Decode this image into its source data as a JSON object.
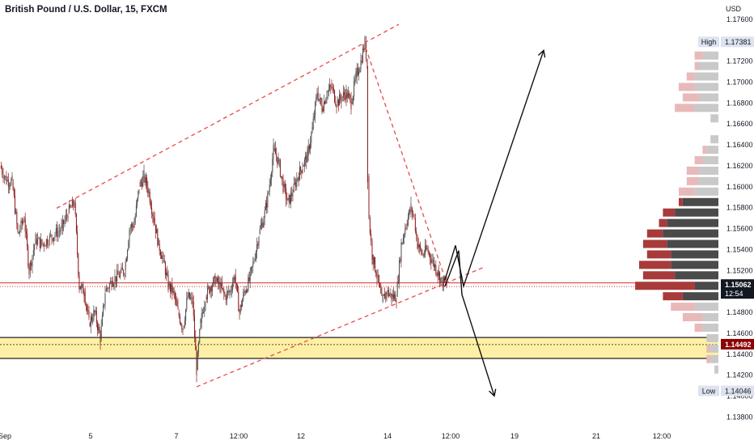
{
  "header": {
    "title": "British Pound / U.S. Dollar, 15, FXCM"
  },
  "axis": {
    "currency": "USD"
  },
  "chart_data": {
    "type": "candlestick",
    "title": "British Pound / U.S. Dollar, 15, FXCM",
    "ylabel": "USD",
    "ylim": [
      1.137,
      1.1775
    ],
    "y_ticks": [
      "1.13800",
      "1.14000",
      "1.14200",
      "1.14400",
      "1.14600",
      "1.14800",
      "1.15000",
      "1.15200",
      "1.15400",
      "1.15600",
      "1.15800",
      "1.16000",
      "1.16200",
      "1.16400",
      "1.16600",
      "1.16800",
      "1.17000",
      "1.17200",
      "1.17400",
      "1.17600"
    ],
    "x_ticks": [
      "Sep",
      "5",
      "7",
      "12:00",
      "12",
      "14",
      "12:00",
      "19",
      "21",
      "12:00"
    ],
    "last_price": {
      "value": 1.15062,
      "label": "1.15062",
      "countdown": "12:54"
    },
    "level": {
      "value": 1.14492,
      "label": "1.14492"
    },
    "high": {
      "label": "High",
      "value": "1.17381"
    },
    "low": {
      "label": "Low",
      "value": "1.14046"
    },
    "support_zone": [
      1.1436,
      1.1456
    ],
    "price_path": [
      [
        0,
        1.162
      ],
      [
        8,
        1.1606
      ],
      [
        15,
        1.1605
      ],
      [
        22,
        1.1555
      ],
      [
        30,
        1.157
      ],
      [
        36,
        1.152
      ],
      [
        44,
        1.155
      ],
      [
        52,
        1.1545
      ],
      [
        60,
        1.155
      ],
      [
        68,
        1.1555
      ],
      [
        76,
        1.156
      ],
      [
        84,
        1.1575
      ],
      [
        92,
        1.1585
      ],
      [
        98,
        1.1505
      ],
      [
        104,
        1.15
      ],
      [
        110,
        1.147
      ],
      [
        117,
        1.148
      ],
      [
        124,
        1.1455
      ],
      [
        130,
        1.15
      ],
      [
        138,
        1.151
      ],
      [
        146,
        1.1515
      ],
      [
        154,
        1.152
      ],
      [
        160,
        1.156
      ],
      [
        166,
        1.1565
      ],
      [
        172,
        1.16
      ],
      [
        178,
        1.161
      ],
      [
        184,
        1.1595
      ],
      [
        190,
        1.157
      ],
      [
        196,
        1.1545
      ],
      [
        202,
        1.153
      ],
      [
        208,
        1.1505
      ],
      [
        214,
        1.15
      ],
      [
        220,
        1.148
      ],
      [
        226,
        1.1465
      ],
      [
        232,
        1.1495
      ],
      [
        238,
        1.149
      ],
      [
        243,
        1.1425
      ],
      [
        248,
        1.147
      ],
      [
        254,
        1.1495
      ],
      [
        260,
        1.1505
      ],
      [
        266,
        1.151
      ],
      [
        272,
        1.1505
      ],
      [
        278,
        1.1495
      ],
      [
        284,
        1.15
      ],
      [
        290,
        1.1515
      ],
      [
        296,
        1.148
      ],
      [
        302,
        1.15
      ],
      [
        308,
        1.151
      ],
      [
        314,
        1.153
      ],
      [
        320,
        1.1555
      ],
      [
        326,
        1.157
      ],
      [
        332,
        1.1595
      ],
      [
        338,
        1.1635
      ],
      [
        344,
        1.1625
      ],
      [
        350,
        1.16
      ],
      [
        356,
        1.1585
      ],
      [
        362,
        1.1595
      ],
      [
        368,
        1.161
      ],
      [
        374,
        1.162
      ],
      [
        380,
        1.163
      ],
      [
        386,
        1.1655
      ],
      [
        392,
        1.169
      ],
      [
        398,
        1.1675
      ],
      [
        404,
        1.169
      ],
      [
        410,
        1.1695
      ],
      [
        416,
        1.168
      ],
      [
        422,
        1.1685
      ],
      [
        428,
        1.169
      ],
      [
        434,
        1.168
      ],
      [
        440,
        1.1705
      ],
      [
        446,
        1.172
      ],
      [
        451,
        1.1738
      ],
      [
        454,
        1.1715
      ],
      [
        454.5,
        1.161
      ],
      [
        456,
        1.157
      ],
      [
        460,
        1.1535
      ],
      [
        466,
        1.1515
      ],
      [
        472,
        1.149
      ],
      [
        478,
        1.15
      ],
      [
        484,
        1.1495
      ],
      [
        490,
        1.1495
      ],
      [
        496,
        1.1545
      ],
      [
        502,
        1.1565
      ],
      [
        508,
        1.158
      ],
      [
        512,
        1.157
      ],
      [
        516,
        1.1545
      ],
      [
        522,
        1.1535
      ],
      [
        528,
        1.154
      ],
      [
        534,
        1.153
      ],
      [
        540,
        1.152
      ],
      [
        546,
        1.151
      ],
      [
        552,
        1.1506
      ]
    ],
    "trendlines": [
      {
        "points": [
          [
            70,
            1.15795
          ],
          [
            493,
            1.17552
          ]
        ],
        "style": "dashed",
        "color": "#e84a4a"
      },
      {
        "points": [
          [
            243,
            1.14089
          ],
          [
            600,
            1.15237
          ]
        ],
        "style": "dashed",
        "color": "#e84a4a"
      },
      {
        "points": [
          [
            452,
            1.17327
          ],
          [
            550,
            1.1513
          ]
        ],
        "style": "dashed",
        "color": "#e84a4a"
      }
    ],
    "projections": [
      {
        "name": "bullish",
        "points": [
          [
            550,
            1.1511
          ],
          [
            563,
            1.1544
          ],
          [
            573,
            1.1505
          ],
          [
            672,
            1.17303
          ]
        ]
      },
      {
        "name": "bearish",
        "points": [
          [
            550,
            1.1505
          ],
          [
            567,
            1.1539
          ],
          [
            571,
            1.1497
          ],
          [
            611,
            1.14001
          ]
        ]
      }
    ],
    "volume_profile": [
      [
        1.1725,
        4,
        2,
        1
      ],
      [
        1.1715,
        5,
        1,
        1
      ],
      [
        1.1705,
        6,
        2,
        1
      ],
      [
        1.1695,
        6,
        4,
        1
      ],
      [
        1.1685,
        5,
        4,
        1
      ],
      [
        1.1675,
        6,
        5,
        1
      ],
      [
        1.1665,
        2,
        0,
        1
      ],
      [
        1.1645,
        2,
        0,
        1
      ],
      [
        1.1635,
        3,
        1,
        1
      ],
      [
        1.1625,
        4,
        2,
        1
      ],
      [
        1.1615,
        5,
        3,
        1
      ],
      [
        1.1605,
        5,
        3,
        1
      ],
      [
        1.1595,
        6,
        4,
        1
      ],
      [
        1.1585,
        9,
        1,
        0
      ],
      [
        1.1575,
        11,
        3,
        0
      ],
      [
        1.1565,
        13,
        2,
        0
      ],
      [
        1.1555,
        14,
        4,
        0
      ],
      [
        1.1545,
        13,
        6,
        0
      ],
      [
        1.1535,
        12,
        6,
        0
      ],
      [
        1.1525,
        12,
        8,
        0
      ],
      [
        1.1515,
        11,
        8,
        0
      ],
      [
        1.1505,
        6,
        15,
        0
      ],
      [
        1.1495,
        9,
        5,
        0
      ],
      [
        1.1485,
        6,
        6,
        1
      ],
      [
        1.1475,
        4,
        5,
        1
      ],
      [
        1.1465,
        4,
        2,
        1
      ],
      [
        1.1455,
        3,
        0,
        1
      ],
      [
        1.1445,
        2,
        1,
        1
      ],
      [
        1.1435,
        2,
        1,
        1
      ],
      [
        1.1425,
        1,
        0,
        1
      ]
    ]
  },
  "colors": {
    "up": "#4a4a4a",
    "down": "#8b1a1a",
    "trend": "#e84a4a",
    "zone": "#fdf0a6",
    "last_price": "#131722",
    "level": "#8b0000"
  }
}
